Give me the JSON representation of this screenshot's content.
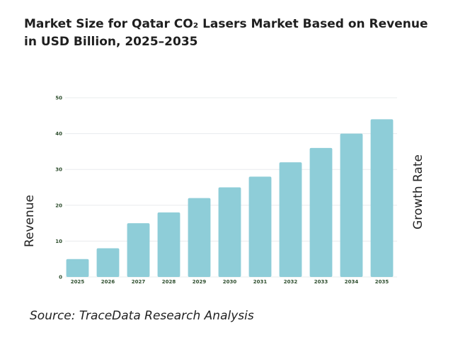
{
  "chart_data": {
    "type": "bar",
    "title": "Market Size for Qatar CO₂ Lasers Market Based on Revenue in USD Billion, 2025–2035",
    "ylabel": "Revenue",
    "ylabel_right": "Growth Rate",
    "source": "Source: TraceData Research Analysis",
    "categories": [
      "2025",
      "2026",
      "2027",
      "2028",
      "2029",
      "2030",
      "2031",
      "2032",
      "2033",
      "2034",
      "2035"
    ],
    "series": [
      {
        "values": [
          5,
          8,
          15,
          18,
          22,
          25,
          28,
          32,
          36,
          40,
          44
        ]
      }
    ],
    "ylim": [
      0,
      50
    ],
    "yticks": [
      "0",
      "10",
      "20",
      "30",
      "40",
      "50"
    ],
    "grid": true,
    "colors": {
      "bar": "#8ecdd8",
      "grid": "#e8ecee",
      "tick": "#2f4f2f"
    }
  }
}
